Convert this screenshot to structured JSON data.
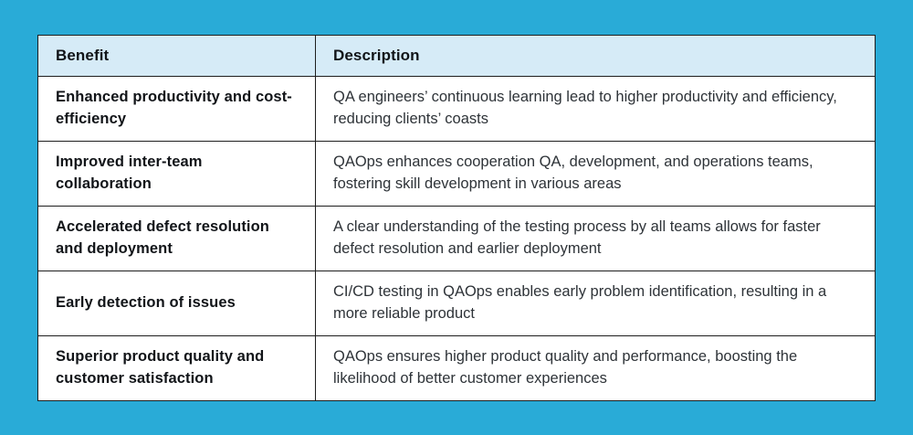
{
  "page": {
    "background_color": "#29ABD7",
    "table_border_color": "#1E1E1E",
    "header_background_color": "#D6EBF7",
    "cell_background_color": "#FFFFFF"
  },
  "table": {
    "columns": [
      {
        "label": "Benefit"
      },
      {
        "label": "Description"
      }
    ],
    "rows": [
      {
        "benefit": "Enhanced productivity and cost-efficiency",
        "description": "QA engineers’ continuous learning lead to higher productivity and efficiency, reducing clients’ coasts"
      },
      {
        "benefit": "Improved inter-team collaboration",
        "description": "QAOps enhances cooperation QA, development, and operations teams, fostering skill development in various areas"
      },
      {
        "benefit": "Accelerated defect resolution and deployment",
        "description": "A clear understanding of the testing process by all teams allows for faster defect resolution and earlier deployment"
      },
      {
        "benefit": "Early detection of issues",
        "description": "CI/CD testing in QAOps enables early problem identification, resulting in a more reliable product"
      },
      {
        "benefit": "Superior product quality and customer satisfaction",
        "description": "QAOps ensures higher product quality and performance, boosting the likelihood of better customer experiences"
      }
    ]
  }
}
